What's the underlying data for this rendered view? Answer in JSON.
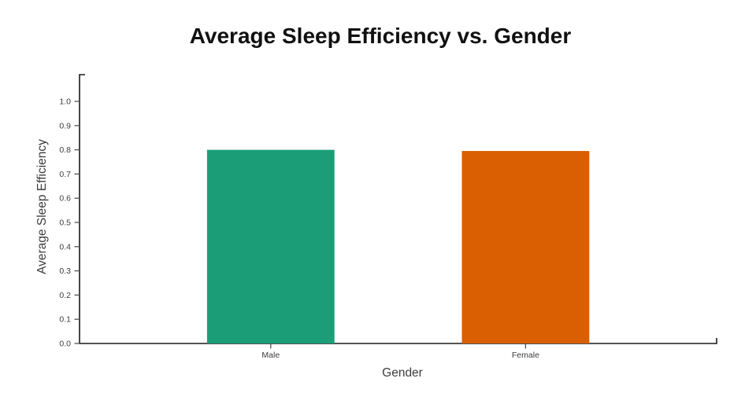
{
  "page": {
    "background": "#ffffff"
  },
  "chart_data": {
    "type": "bar",
    "title": "Average Sleep Efficiency vs. Gender",
    "xlabel": "Gender",
    "ylabel": "Average Sleep Efficiency",
    "categories": [
      "Male",
      "Female"
    ],
    "values": [
      0.8,
      0.795
    ],
    "bar_colors": [
      "#1b9e77",
      "#d95f02"
    ],
    "ylim": [
      0,
      1.1
    ],
    "yticks": [
      0,
      0.1,
      0.2,
      0.3,
      0.4,
      0.5,
      0.6,
      0.7,
      0.8,
      0.9,
      1.0
    ],
    "ytick_labels": [
      "0.0",
      "0.1",
      "0.2",
      "0.3",
      "0.4",
      "0.5",
      "0.6",
      "0.7",
      "0.8",
      "0.9",
      "1.0"
    ],
    "grid": false,
    "legend_visible": false,
    "colors": {
      "axis_line": "#1a1a1a",
      "tick_mark": "#555555",
      "tick_text": "#3d3d3d",
      "axis_title_text": "#3d3d3d",
      "title_text": "#111111"
    }
  }
}
